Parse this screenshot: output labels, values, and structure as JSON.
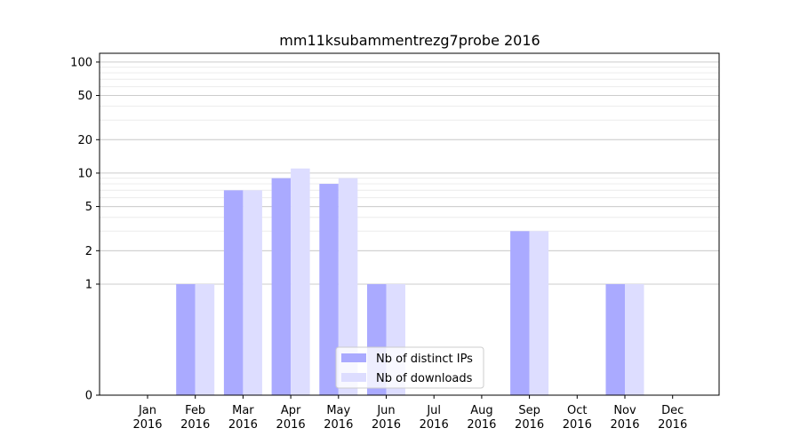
{
  "chart_data": {
    "type": "bar",
    "title": "mm11ksubammentrezg7probe 2016",
    "categories": [
      "Jan\n2016",
      "Feb\n2016",
      "Mar\n2016",
      "Apr\n2016",
      "May\n2016",
      "Jun\n2016",
      "Jul\n2016",
      "Aug\n2016",
      "Sep\n2016",
      "Oct\n2016",
      "Nov\n2016",
      "Dec\n2016"
    ],
    "series": [
      {
        "name": "Nb of distinct IPs",
        "values": [
          0,
          1,
          7,
          9,
          8,
          1,
          0,
          0,
          3,
          0,
          1,
          0
        ],
        "color": "#aaaaff"
      },
      {
        "name": "Nb of downloads",
        "values": [
          0,
          1,
          7,
          11,
          9,
          1,
          0,
          0,
          3,
          0,
          1,
          0
        ],
        "color": "#ddddff"
      }
    ],
    "y_scale": "symlog",
    "ylim": [
      0,
      120
    ],
    "yticks": [
      0,
      1,
      2,
      5,
      10,
      20,
      50,
      100
    ],
    "ytick_labels": [
      "0",
      "1",
      "2",
      "5",
      "10",
      "20",
      "50",
      "100"
    ],
    "grid": true,
    "legend_position": "lower center",
    "xlabel": "",
    "ylabel": ""
  }
}
